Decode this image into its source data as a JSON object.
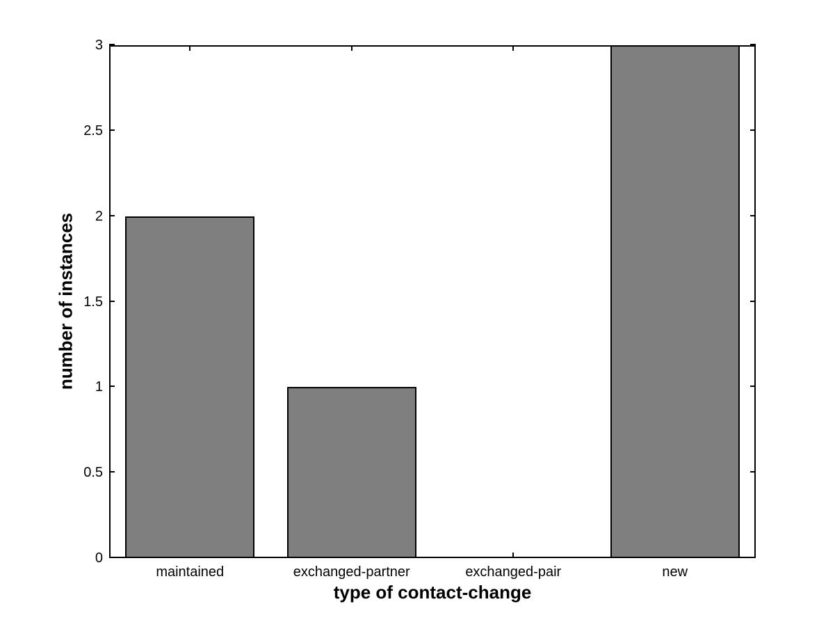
{
  "chart_data": {
    "type": "bar",
    "categories": [
      "maintained",
      "exchanged-partner",
      "exchanged-pair",
      "new"
    ],
    "values": [
      2,
      1,
      0,
      3
    ],
    "xlabel": "type of contact-change",
    "ylabel": "number of instances",
    "xlim": [
      0.5,
      4.5
    ],
    "ylim": [
      0,
      3
    ],
    "yticks": [
      0,
      0.5,
      1,
      1.5,
      2,
      2.5,
      3
    ],
    "ytick_labels": [
      "0",
      "0.5",
      "1",
      "1.5",
      "2",
      "2.5",
      "3"
    ],
    "bar_width_fraction": 0.8,
    "bar_color": "#7f7f7f",
    "bar_edge_color": "#000000",
    "axis_color": "#000000",
    "background_color": "#ffffff",
    "grid": false,
    "legend": null,
    "tick_direction": "in",
    "box": true
  }
}
